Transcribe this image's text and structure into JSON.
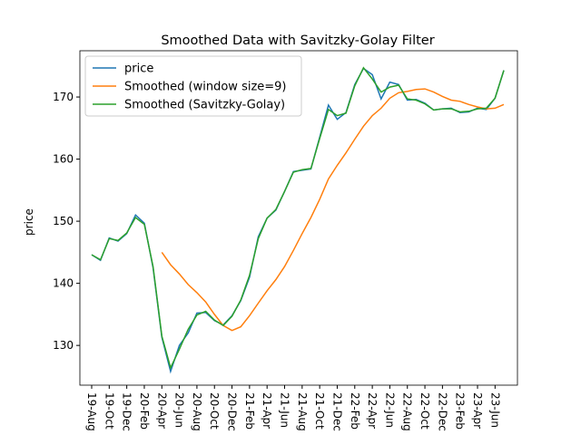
{
  "chart_data": {
    "type": "line",
    "title": "Smoothed Data with Savitzky-Golay Filter",
    "y_label": "price",
    "categories": [
      "19-Aug",
      null,
      "19-Oct",
      null,
      "19-Dec",
      null,
      "20-Feb",
      null,
      "20-Apr",
      null,
      "20-Jun",
      null,
      "20-Aug",
      null,
      "20-Oct",
      null,
      "20-Dec",
      null,
      "21-Feb",
      null,
      "21-Apr",
      null,
      "21-Jun",
      null,
      "21-Aug",
      null,
      "21-Oct",
      null,
      "21-Dec",
      null,
      "22-Feb",
      null,
      "22-Apr",
      null,
      "22-Jun",
      null,
      "22-Aug",
      null,
      "22-Oct",
      null,
      "22-Dec",
      null,
      "23-Feb",
      null,
      "23-Apr",
      null,
      "23-Jun",
      null
    ],
    "series": [
      {
        "name": "price",
        "color": "#1f77b4",
        "values": [
          144.6,
          143.7,
          147.3,
          146.8,
          148.0,
          151.0,
          149.7,
          142.5,
          131.3,
          125.8,
          130.0,
          132.0,
          135.2,
          135.3,
          134.0,
          133.3,
          134.8,
          137.2,
          141.0,
          147.5,
          150.5,
          151.8,
          154.8,
          158.0,
          158.2,
          158.4,
          163.5,
          168.7,
          166.4,
          167.5,
          172.0,
          174.6,
          173.6,
          169.7,
          172.4,
          172.0,
          169.5,
          169.6,
          169.0,
          167.9,
          168.1,
          168.2,
          167.5,
          167.6,
          168.2,
          168.0,
          169.8,
          174.3
        ]
      },
      {
        "name": "Smoothed (window size=9)",
        "color": "#ff7f0e",
        "values": [
          null,
          null,
          null,
          null,
          null,
          null,
          null,
          null,
          145.0,
          143.0,
          141.5,
          139.8,
          138.5,
          137.0,
          135.0,
          133.2,
          132.4,
          133.0,
          134.8,
          136.8,
          138.8,
          140.6,
          142.7,
          145.3,
          148.0,
          150.6,
          153.5,
          156.8,
          159.0,
          161.0,
          163.2,
          165.3,
          167.0,
          168.2,
          169.8,
          170.7,
          170.9,
          171.2,
          171.3,
          170.8,
          170.1,
          169.5,
          169.3,
          168.8,
          168.4,
          168.1,
          168.2,
          168.8
        ]
      },
      {
        "name": "Smoothed (Savitzky-Golay)",
        "color": "#2ca02c",
        "values": [
          144.6,
          143.8,
          147.2,
          146.9,
          148.1,
          150.6,
          149.5,
          142.7,
          131.5,
          126.4,
          129.4,
          132.6,
          134.9,
          135.5,
          134.1,
          133.2,
          134.7,
          137.3,
          141.3,
          147.2,
          150.5,
          151.9,
          154.8,
          157.9,
          158.3,
          158.5,
          163.3,
          168.0,
          167.0,
          167.4,
          171.8,
          174.7,
          172.9,
          170.8,
          171.6,
          171.9,
          169.7,
          169.5,
          168.9,
          167.9,
          168.1,
          168.1,
          167.6,
          167.7,
          168.1,
          168.2,
          169.8,
          174.3
        ]
      }
    ],
    "ylim": [
      123.6,
      177.45
    ],
    "yticks": [
      130,
      140,
      150,
      160,
      170
    ],
    "legend": "upper left"
  }
}
